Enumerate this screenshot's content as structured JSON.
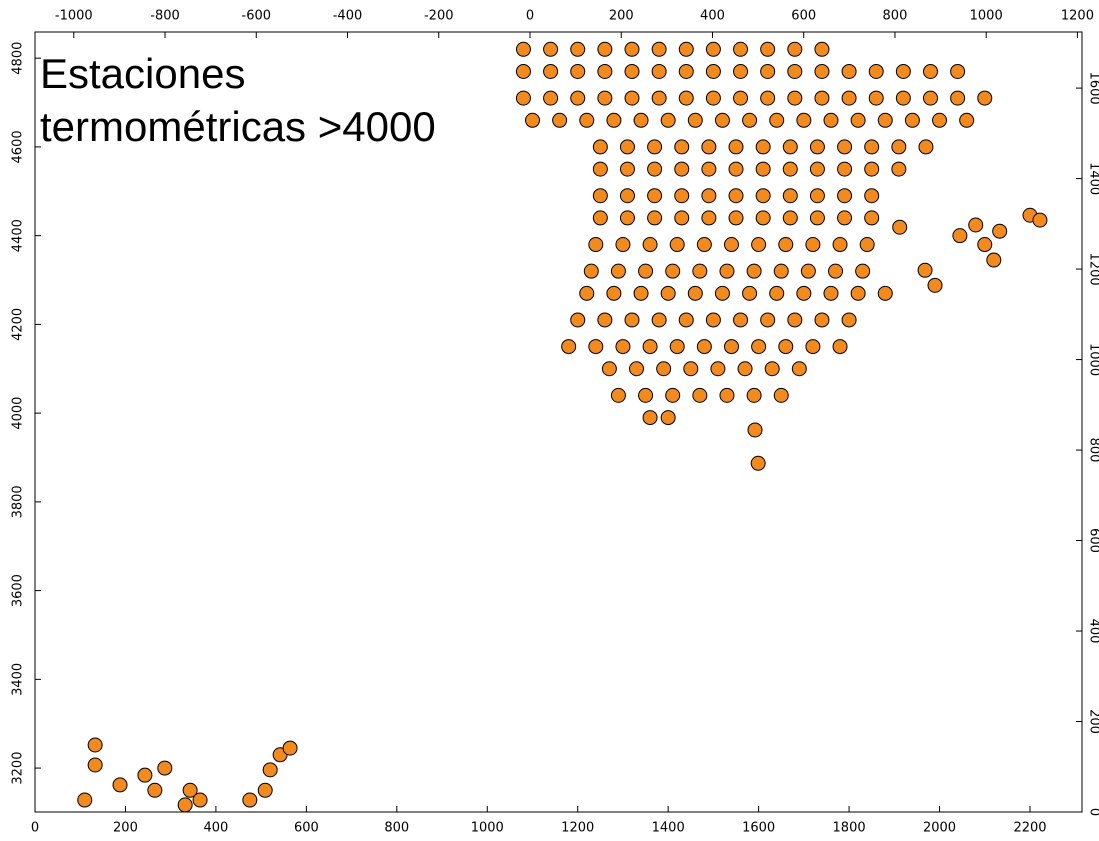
{
  "chart_data": {
    "type": "scatter",
    "title": "Estaciones termométricas >4000",
    "color": "#f28a1e",
    "xlim": [
      0,
      2315
    ],
    "xticks": [
      0,
      200,
      400,
      600,
      800,
      1000,
      1200,
      1400,
      1600,
      1800,
      2000,
      2200
    ],
    "ylim": [
      3101,
      4859
    ],
    "yticks": [
      3200,
      3400,
      3600,
      3800,
      4000,
      4200,
      4400,
      4600,
      4800
    ],
    "x2lim": [
      -1085,
      1210
    ],
    "x2ticks": [
      -1000,
      -800,
      -600,
      -400,
      -200,
      0,
      200,
      400,
      600,
      800,
      1000,
      1200
    ],
    "y2lim": [
      0,
      1724
    ],
    "y2ticks": [
      0,
      200,
      400,
      600,
      800,
      1000,
      1200,
      1400,
      1600
    ],
    "points": [
      [
        1080,
        4820
      ],
      [
        1140,
        4820
      ],
      [
        1200,
        4820
      ],
      [
        1260,
        4820
      ],
      [
        1320,
        4820
      ],
      [
        1380,
        4820
      ],
      [
        1440,
        4820
      ],
      [
        1500,
        4820
      ],
      [
        1560,
        4820
      ],
      [
        1620,
        4820
      ],
      [
        1680,
        4820
      ],
      [
        1740,
        4820
      ],
      [
        1080,
        4770
      ],
      [
        1140,
        4770
      ],
      [
        1200,
        4770
      ],
      [
        1260,
        4770
      ],
      [
        1320,
        4770
      ],
      [
        1380,
        4770
      ],
      [
        1440,
        4770
      ],
      [
        1500,
        4770
      ],
      [
        1560,
        4770
      ],
      [
        1620,
        4770
      ],
      [
        1680,
        4770
      ],
      [
        1740,
        4770
      ],
      [
        1800,
        4770
      ],
      [
        1860,
        4770
      ],
      [
        1920,
        4770
      ],
      [
        1980,
        4770
      ],
      [
        2040,
        4770
      ],
      [
        1080,
        4710
      ],
      [
        1140,
        4710
      ],
      [
        1200,
        4710
      ],
      [
        1260,
        4710
      ],
      [
        1320,
        4710
      ],
      [
        1380,
        4710
      ],
      [
        1440,
        4710
      ],
      [
        1500,
        4710
      ],
      [
        1560,
        4710
      ],
      [
        1620,
        4710
      ],
      [
        1680,
        4710
      ],
      [
        1740,
        4710
      ],
      [
        1800,
        4710
      ],
      [
        1860,
        4710
      ],
      [
        1920,
        4710
      ],
      [
        1980,
        4710
      ],
      [
        2040,
        4710
      ],
      [
        2100,
        4710
      ],
      [
        1100,
        4660
      ],
      [
        1160,
        4660
      ],
      [
        1220,
        4660
      ],
      [
        1280,
        4660
      ],
      [
        1340,
        4660
      ],
      [
        1400,
        4660
      ],
      [
        1460,
        4660
      ],
      [
        1520,
        4660
      ],
      [
        1580,
        4660
      ],
      [
        1640,
        4660
      ],
      [
        1700,
        4660
      ],
      [
        1760,
        4660
      ],
      [
        1820,
        4660
      ],
      [
        1880,
        4660
      ],
      [
        1940,
        4660
      ],
      [
        2000,
        4660
      ],
      [
        2060,
        4660
      ],
      [
        1250,
        4600
      ],
      [
        1310,
        4600
      ],
      [
        1370,
        4600
      ],
      [
        1430,
        4600
      ],
      [
        1490,
        4600
      ],
      [
        1550,
        4600
      ],
      [
        1610,
        4600
      ],
      [
        1670,
        4600
      ],
      [
        1730,
        4600
      ],
      [
        1790,
        4600
      ],
      [
        1850,
        4600
      ],
      [
        1910,
        4600
      ],
      [
        1970,
        4600
      ],
      [
        1250,
        4550
      ],
      [
        1310,
        4550
      ],
      [
        1370,
        4550
      ],
      [
        1430,
        4550
      ],
      [
        1490,
        4550
      ],
      [
        1550,
        4550
      ],
      [
        1610,
        4550
      ],
      [
        1670,
        4550
      ],
      [
        1730,
        4550
      ],
      [
        1790,
        4550
      ],
      [
        1850,
        4550
      ],
      [
        1910,
        4550
      ],
      [
        1250,
        4490
      ],
      [
        1310,
        4490
      ],
      [
        1370,
        4490
      ],
      [
        1430,
        4490
      ],
      [
        1490,
        4490
      ],
      [
        1550,
        4490
      ],
      [
        1610,
        4490
      ],
      [
        1670,
        4490
      ],
      [
        1730,
        4490
      ],
      [
        1790,
        4490
      ],
      [
        1850,
        4490
      ],
      [
        1250,
        4440
      ],
      [
        1310,
        4440
      ],
      [
        1370,
        4440
      ],
      [
        1430,
        4440
      ],
      [
        1490,
        4440
      ],
      [
        1550,
        4440
      ],
      [
        1610,
        4440
      ],
      [
        1670,
        4440
      ],
      [
        1730,
        4440
      ],
      [
        1790,
        4440
      ],
      [
        1850,
        4440
      ],
      [
        1240,
        4380
      ],
      [
        1300,
        4380
      ],
      [
        1360,
        4380
      ],
      [
        1420,
        4380
      ],
      [
        1480,
        4380
      ],
      [
        1540,
        4380
      ],
      [
        1600,
        4380
      ],
      [
        1660,
        4380
      ],
      [
        1720,
        4380
      ],
      [
        1780,
        4380
      ],
      [
        1840,
        4380
      ],
      [
        1230,
        4320
      ],
      [
        1290,
        4320
      ],
      [
        1350,
        4320
      ],
      [
        1410,
        4320
      ],
      [
        1470,
        4320
      ],
      [
        1530,
        4320
      ],
      [
        1590,
        4320
      ],
      [
        1650,
        4320
      ],
      [
        1710,
        4320
      ],
      [
        1770,
        4320
      ],
      [
        1830,
        4320
      ],
      [
        1220,
        4270
      ],
      [
        1280,
        4270
      ],
      [
        1340,
        4270
      ],
      [
        1400,
        4270
      ],
      [
        1460,
        4270
      ],
      [
        1520,
        4270
      ],
      [
        1580,
        4270
      ],
      [
        1640,
        4270
      ],
      [
        1700,
        4270
      ],
      [
        1760,
        4270
      ],
      [
        1820,
        4270
      ],
      [
        1880,
        4270
      ],
      [
        1200,
        4210
      ],
      [
        1260,
        4210
      ],
      [
        1320,
        4210
      ],
      [
        1380,
        4210
      ],
      [
        1440,
        4210
      ],
      [
        1500,
        4210
      ],
      [
        1560,
        4210
      ],
      [
        1620,
        4210
      ],
      [
        1680,
        4210
      ],
      [
        1740,
        4210
      ],
      [
        1800,
        4210
      ],
      [
        1180,
        4150
      ],
      [
        1240,
        4150
      ],
      [
        1300,
        4150
      ],
      [
        1360,
        4150
      ],
      [
        1420,
        4150
      ],
      [
        1480,
        4150
      ],
      [
        1540,
        4150
      ],
      [
        1600,
        4150
      ],
      [
        1660,
        4150
      ],
      [
        1720,
        4150
      ],
      [
        1780,
        4150
      ],
      [
        1270,
        4100
      ],
      [
        1330,
        4100
      ],
      [
        1390,
        4100
      ],
      [
        1450,
        4100
      ],
      [
        1510,
        4100
      ],
      [
        1570,
        4100
      ],
      [
        1630,
        4100
      ],
      [
        1690,
        4100
      ],
      [
        1290,
        4040
      ],
      [
        1350,
        4040
      ],
      [
        1410,
        4040
      ],
      [
        1470,
        4040
      ],
      [
        1530,
        4040
      ],
      [
        1590,
        4040
      ],
      [
        1650,
        4040
      ],
      [
        1360,
        3990
      ],
      [
        1400,
        3990
      ],
      [
        1592,
        3962
      ],
      [
        1599,
        3887
      ],
      [
        1912,
        4419
      ],
      [
        1968,
        4322
      ],
      [
        1990,
        4288
      ],
      [
        2045,
        4400
      ],
      [
        2080,
        4424
      ],
      [
        2100,
        4380
      ],
      [
        2120,
        4345
      ],
      [
        2133,
        4410
      ],
      [
        2200,
        4446
      ],
      [
        2222,
        4435
      ],
      [
        110,
        3128
      ],
      [
        133,
        3207
      ],
      [
        133,
        3252
      ],
      [
        188,
        3162
      ],
      [
        243,
        3184
      ],
      [
        287,
        3200
      ],
      [
        265,
        3150
      ],
      [
        332,
        3117
      ],
      [
        343,
        3150
      ],
      [
        365,
        3128
      ],
      [
        475,
        3128
      ],
      [
        509,
        3150
      ],
      [
        520,
        3196
      ],
      [
        542,
        3230
      ],
      [
        564,
        3245
      ]
    ]
  }
}
